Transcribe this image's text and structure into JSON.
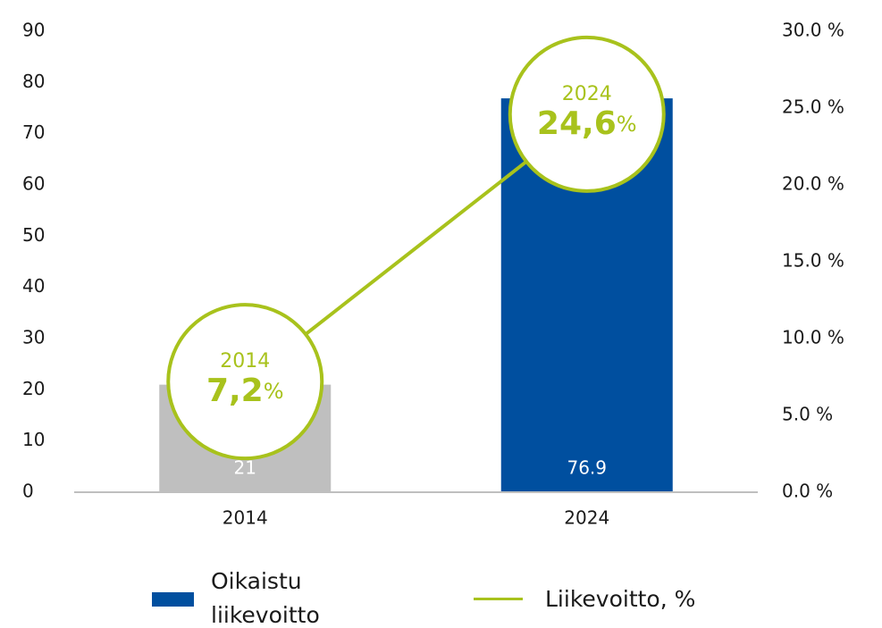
{
  "chart_data": {
    "type": "bar",
    "categories": [
      "2014",
      "2024"
    ],
    "series": [
      {
        "name": "Oikaistu liikevoitto",
        "type": "bar",
        "color": "#004f9f",
        "colors": [
          "#bfbfbf",
          "#004f9f"
        ],
        "values": [
          21,
          76.9
        ]
      },
      {
        "name": "Liikevoitto, %",
        "type": "line",
        "axis": "y2",
        "color": "#a8c21c",
        "values": [
          7.2,
          24.6
        ],
        "value_labels": [
          "7,2",
          "24,6"
        ]
      }
    ],
    "unit_label": "%",
    "ylim": [
      0,
      90
    ],
    "yticks": [
      0,
      10,
      20,
      30,
      40,
      50,
      60,
      70,
      80,
      90
    ],
    "y2lim": [
      0,
      30
    ],
    "y2ticks": [
      {
        "value": 0,
        "label": "0.0 %"
      },
      {
        "value": 5,
        "label": "5.0 %"
      },
      {
        "value": 10,
        "label": "10.0 %"
      },
      {
        "value": 15,
        "label": "15.0 %"
      },
      {
        "value": 20,
        "label": "20.0 %"
      },
      {
        "value": 25,
        "label": "25.0 %"
      },
      {
        "value": 30,
        "label": "30.0 %"
      }
    ],
    "grid": false,
    "legend": "bottom"
  }
}
